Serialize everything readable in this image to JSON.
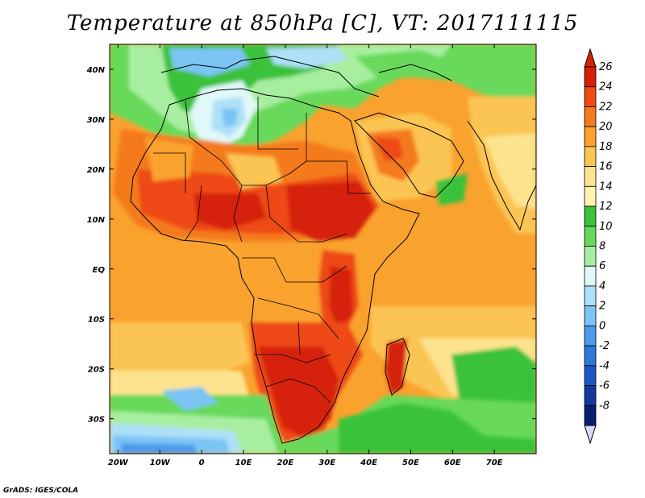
{
  "title": "Temperature at 850hPa [C], VT: 2017111115",
  "credit": "GrADS: IGES/COLA",
  "map": {
    "lon_range": [
      -22,
      80
    ],
    "lat_range": [
      -37,
      45
    ],
    "lon_ticks": [
      {
        "value": -20,
        "label": "20W"
      },
      {
        "value": -10,
        "label": "10W"
      },
      {
        "value": 0,
        "label": "0"
      },
      {
        "value": 10,
        "label": "10E"
      },
      {
        "value": 20,
        "label": "20E"
      },
      {
        "value": 30,
        "label": "30E"
      },
      {
        "value": 40,
        "label": "40E"
      },
      {
        "value": 50,
        "label": "50E"
      },
      {
        "value": 60,
        "label": "60E"
      },
      {
        "value": 70,
        "label": "70E"
      }
    ],
    "lat_ticks": [
      {
        "value": 40,
        "label": "40N"
      },
      {
        "value": 30,
        "label": "30N"
      },
      {
        "value": 20,
        "label": "20N"
      },
      {
        "value": 10,
        "label": "10N"
      },
      {
        "value": 0,
        "label": "EQ"
      },
      {
        "value": -10,
        "label": "10S"
      },
      {
        "value": -20,
        "label": "20S"
      },
      {
        "value": -30,
        "label": "30S"
      }
    ]
  },
  "colorbar": {
    "levels": [
      {
        "label": "26",
        "color": "#d6200a"
      },
      {
        "label": "24",
        "color": "#ee4a12"
      },
      {
        "label": "22",
        "color": "#f47a1e"
      },
      {
        "label": "20",
        "color": "#f9a22e"
      },
      {
        "label": "18",
        "color": "#fbc552"
      },
      {
        "label": "16",
        "color": "#fde38e"
      },
      {
        "label": "14",
        "color": "#fff4b0"
      },
      {
        "label": "12",
        "color": "#3bc23b"
      },
      {
        "label": "10",
        "color": "#67d95a"
      },
      {
        "label": "8",
        "color": "#a8eea0"
      },
      {
        "label": "6",
        "color": "#e0f8f8"
      },
      {
        "label": "4",
        "color": "#aee0f8"
      },
      {
        "label": "2",
        "color": "#7cc4f4"
      },
      {
        "label": "0",
        "color": "#4d9ceb"
      },
      {
        "label": "-2",
        "color": "#2c78db"
      },
      {
        "label": "-4",
        "color": "#1c56c4"
      },
      {
        "label": "-6",
        "color": "#12389e"
      },
      {
        "label": "-8",
        "color": "#0a1e72"
      }
    ],
    "top_arrow_color": "#d6200a",
    "bottom_arrow_color": "#d8d8f8"
  }
}
